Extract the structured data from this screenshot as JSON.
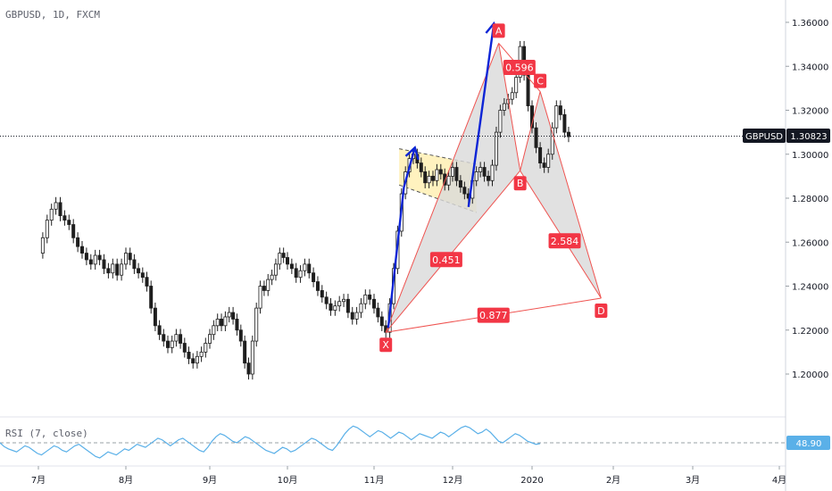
{
  "header": {
    "symbol_line": "GBPUSD, 1D, FXCM"
  },
  "price_tag": {
    "symbol": "GBPUSD",
    "value": "1.30823"
  },
  "rsi": {
    "legend": "RSI (7, close)",
    "value": "48.90"
  },
  "colors": {
    "up": "#26a69a",
    "candle": "#1e1e1e",
    "pattern_line": "#ef5350",
    "pattern_fill": "#d9d9d9",
    "channel_fill": "#fff1b8",
    "arrow": "#0d25d6",
    "rsi_line": "#5ab0e8",
    "label_bg": "#f23645"
  },
  "chart_data": {
    "type": "candlestick",
    "instrument": "GBPUSD",
    "timeframe": "1D",
    "price_axis": {
      "ticks": [
        "1.36000",
        "1.34000",
        "1.32000",
        "1.30000",
        "1.28000",
        "1.26000",
        "1.24000",
        "1.22000",
        "1.20000"
      ],
      "tick_values": [
        1.36,
        1.34,
        1.32,
        1.3,
        1.28,
        1.26,
        1.24,
        1.22,
        1.2
      ],
      "range": [
        1.188,
        1.368
      ]
    },
    "time_axis": {
      "ticks": [
        "7月",
        "8月",
        "9月",
        "10月",
        "11月",
        "12月",
        "2020",
        "2月",
        "3月",
        "4月"
      ]
    },
    "current_price": 1.30823,
    "harmonic_pattern": {
      "points": [
        {
          "name": "X",
          "label": "X",
          "price": 1.219,
          "date_index": 4.15
        },
        {
          "name": "A",
          "label": "A",
          "price": 1.3505,
          "date_index": 5.58
        },
        {
          "name": "B",
          "label": "B",
          "price": 1.2925,
          "date_index": 5.85
        },
        {
          "name": "C",
          "label": "C",
          "price": 1.3285,
          "date_index": 6.1
        },
        {
          "name": "D",
          "label": "D",
          "price": 1.2345,
          "date_index": 6.85
        }
      ],
      "ratios": [
        {
          "name": "xb",
          "label": "0.451"
        },
        {
          "name": "ac",
          "label": "0.596"
        },
        {
          "name": "bd",
          "label": "2.584"
        },
        {
          "name": "xd",
          "label": "0.877"
        }
      ]
    },
    "channel": {
      "top": [
        [
          4.32,
          1.3025
        ],
        [
          5.3,
          1.2955
        ]
      ],
      "bottom": [
        [
          4.32,
          1.286
        ],
        [
          5.3,
          1.2735
        ]
      ]
    },
    "arrows": [
      {
        "points": [
          [
            4.18,
            1.221
          ],
          [
            4.38,
            1.285
          ],
          [
            4.52,
            1.303
          ]
        ]
      },
      {
        "points": [
          [
            5.2,
            1.276
          ],
          [
            5.52,
            1.3595
          ]
        ]
      }
    ],
    "candles_path": [
      [
        0,
        1.255
      ],
      [
        0.05,
        1.262
      ],
      [
        0.1,
        1.27
      ],
      [
        0.15,
        1.275
      ],
      [
        0.2,
        1.278
      ],
      [
        0.25,
        1.272
      ],
      [
        0.3,
        1.27
      ],
      [
        0.35,
        1.268
      ],
      [
        0.4,
        1.262
      ],
      [
        0.45,
        1.258
      ],
      [
        0.5,
        1.255
      ],
      [
        0.55,
        1.252
      ],
      [
        0.6,
        1.25
      ],
      [
        0.65,
        1.254
      ],
      [
        0.7,
        1.252
      ],
      [
        0.75,
        1.248
      ],
      [
        0.8,
        1.246
      ],
      [
        0.85,
        1.25
      ],
      [
        0.9,
        1.245
      ],
      [
        0.95,
        1.25
      ],
      [
        1.0,
        1.255
      ],
      [
        1.05,
        1.252
      ],
      [
        1.1,
        1.248
      ],
      [
        1.15,
        1.246
      ],
      [
        1.2,
        1.244
      ],
      [
        1.25,
        1.24
      ],
      [
        1.3,
        1.23
      ],
      [
        1.35,
        1.222
      ],
      [
        1.4,
        1.218
      ],
      [
        1.45,
        1.215
      ],
      [
        1.5,
        1.212
      ],
      [
        1.55,
        1.215
      ],
      [
        1.6,
        1.218
      ],
      [
        1.65,
        1.214
      ],
      [
        1.7,
        1.21
      ],
      [
        1.75,
        1.207
      ],
      [
        1.8,
        1.205
      ],
      [
        1.85,
        1.208
      ],
      [
        1.9,
        1.21
      ],
      [
        1.95,
        1.214
      ],
      [
        2.0,
        1.218
      ],
      [
        2.05,
        1.222
      ],
      [
        2.1,
        1.225
      ],
      [
        2.15,
        1.222
      ],
      [
        2.2,
        1.226
      ],
      [
        2.25,
        1.228
      ],
      [
        2.3,
        1.225
      ],
      [
        2.35,
        1.22
      ],
      [
        2.4,
        1.215
      ],
      [
        2.45,
        1.205
      ],
      [
        2.5,
        1.2
      ],
      [
        2.55,
        1.215
      ],
      [
        2.6,
        1.23
      ],
      [
        2.65,
        1.24
      ],
      [
        2.7,
        1.238
      ],
      [
        2.75,
        1.243
      ],
      [
        2.8,
        1.245
      ],
      [
        2.85,
        1.25
      ],
      [
        2.9,
        1.255
      ],
      [
        2.95,
        1.253
      ],
      [
        3.0,
        1.25
      ],
      [
        3.05,
        1.248
      ],
      [
        3.1,
        1.244
      ],
      [
        3.15,
        1.247
      ],
      [
        3.2,
        1.25
      ],
      [
        3.25,
        1.246
      ],
      [
        3.3,
        1.242
      ],
      [
        3.35,
        1.238
      ],
      [
        3.4,
        1.235
      ],
      [
        3.45,
        1.232
      ],
      [
        3.5,
        1.229
      ],
      [
        3.55,
        1.231
      ],
      [
        3.6,
        1.233
      ],
      [
        3.65,
        1.234
      ],
      [
        3.7,
        1.228
      ],
      [
        3.75,
        1.225
      ],
      [
        3.8,
        1.228
      ],
      [
        3.85,
        1.232
      ],
      [
        3.9,
        1.236
      ],
      [
        3.95,
        1.234
      ],
      [
        4.0,
        1.23
      ],
      [
        4.05,
        1.226
      ],
      [
        4.1,
        1.222
      ],
      [
        4.15,
        1.219
      ],
      [
        4.2,
        1.232
      ],
      [
        4.25,
        1.248
      ],
      [
        4.3,
        1.265
      ],
      [
        4.35,
        1.282
      ],
      [
        4.4,
        1.292
      ],
      [
        4.45,
        1.298
      ],
      [
        4.5,
        1.3
      ],
      [
        4.55,
        1.296
      ],
      [
        4.6,
        1.292
      ],
      [
        4.65,
        1.287
      ],
      [
        4.7,
        1.29
      ],
      [
        4.75,
        1.288
      ],
      [
        4.8,
        1.293
      ],
      [
        4.85,
        1.291
      ],
      [
        4.9,
        1.286
      ],
      [
        4.95,
        1.29
      ],
      [
        5.0,
        1.294
      ],
      [
        5.05,
        1.288
      ],
      [
        5.1,
        1.285
      ],
      [
        5.15,
        1.282
      ],
      [
        5.2,
        1.28
      ],
      [
        5.25,
        1.288
      ],
      [
        5.3,
        1.292
      ],
      [
        5.35,
        1.294
      ],
      [
        5.4,
        1.29
      ],
      [
        5.45,
        1.288
      ],
      [
        5.5,
        1.295
      ],
      [
        5.55,
        1.31
      ],
      [
        5.6,
        1.32
      ],
      [
        5.65,
        1.323
      ],
      [
        5.7,
        1.325
      ],
      [
        5.75,
        1.328
      ],
      [
        5.8,
        1.335
      ],
      [
        5.85,
        1.349
      ],
      [
        5.9,
        1.336
      ],
      [
        5.95,
        1.322
      ],
      [
        6.0,
        1.312
      ],
      [
        6.05,
        1.303
      ],
      [
        6.1,
        1.296
      ],
      [
        6.15,
        1.294
      ],
      [
        6.2,
        1.3
      ],
      [
        6.25,
        1.312
      ],
      [
        6.3,
        1.322
      ],
      [
        6.35,
        1.318
      ],
      [
        6.4,
        1.31
      ],
      [
        6.45,
        1.308
      ]
    ],
    "rsi_series": [
      50,
      45,
      42,
      40,
      38,
      42,
      46,
      44,
      40,
      36,
      34,
      38,
      42,
      46,
      44,
      40,
      38,
      42,
      46,
      48,
      44,
      40,
      36,
      32,
      30,
      34,
      38,
      36,
      34,
      38,
      42,
      40,
      44,
      48,
      46,
      44,
      48,
      52,
      56,
      54,
      50,
      46,
      50,
      54,
      56,
      52,
      48,
      44,
      40,
      38,
      44,
      52,
      58,
      62,
      60,
      56,
      52,
      50,
      54,
      58,
      56,
      52,
      48,
      44,
      40,
      38,
      36,
      40,
      44,
      42,
      38,
      40,
      44,
      48,
      52,
      56,
      54,
      50,
      46,
      42,
      40,
      46,
      54,
      62,
      68,
      72,
      70,
      66,
      62,
      58,
      62,
      66,
      64,
      60,
      56,
      60,
      64,
      62,
      58,
      54,
      58,
      62,
      60,
      58,
      56,
      60,
      64,
      62,
      58,
      62,
      66,
      70,
      72,
      70,
      66,
      62,
      64,
      68,
      64,
      58,
      52,
      50,
      54,
      58,
      62,
      60,
      56,
      52,
      50,
      48,
      49
    ]
  }
}
